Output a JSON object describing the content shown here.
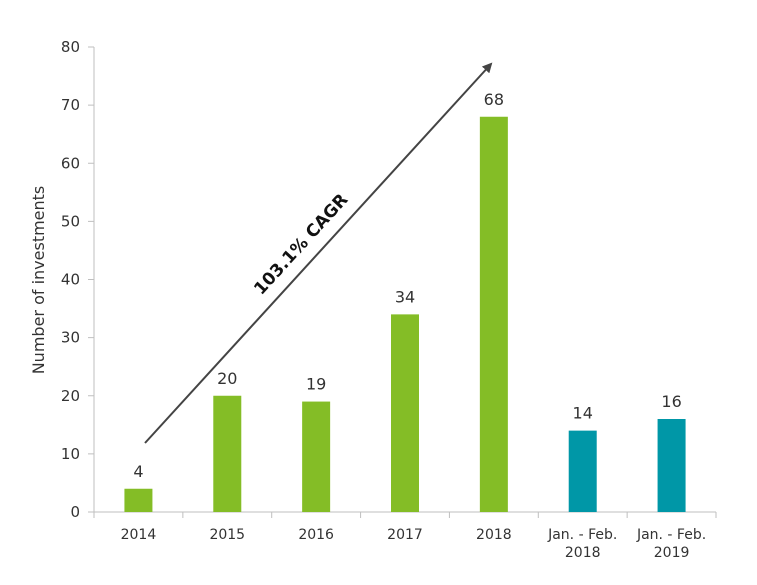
{
  "chart_data": {
    "type": "bar",
    "title": "",
    "xlabel": "",
    "ylabel": "Number of investments",
    "ylim": [
      0,
      80
    ],
    "yticks": [
      0,
      10,
      20,
      30,
      40,
      50,
      60,
      70,
      80
    ],
    "categories": [
      [
        "2014"
      ],
      [
        "2015"
      ],
      [
        "2016"
      ],
      [
        "2017"
      ],
      [
        "2018"
      ],
      [
        "Jan. - Feb.",
        "2018"
      ],
      [
        "Jan. - Feb.",
        "2019"
      ]
    ],
    "values": [
      4,
      20,
      19,
      34,
      68,
      14,
      16
    ],
    "bar_colors": [
      "#84bd26",
      "#84bd26",
      "#84bd26",
      "#84bd26",
      "#84bd26",
      "#0097a7",
      "#0097a7"
    ],
    "annotation": {
      "text": "103.1% CAGR"
    },
    "grid": false,
    "legend": "none"
  }
}
